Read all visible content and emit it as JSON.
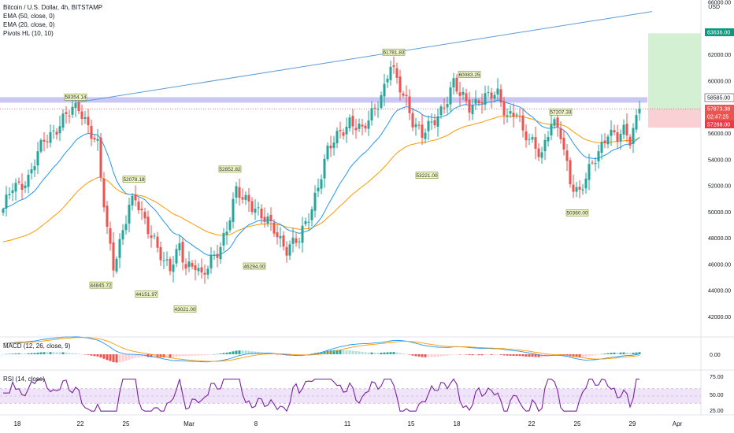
{
  "legend": {
    "symbol": "Bitcoin / U.S. Dollar, 4h, BITSTAMP",
    "ema50": "EMA (50, close, 0)",
    "ema20": "EMA (20, close, 0)",
    "pivots": "Pivots HL (10, 10)"
  },
  "currency": "USD",
  "macd_label": "MACD (12, 26, close, 9)",
  "rsi_label": "RSI (14, close)",
  "colors": {
    "up": "#26a69a",
    "down": "#ef5350",
    "ema20": "#2196f3",
    "ema50": "#ff9800",
    "trendline": "#5b9bd5",
    "band": "#b8b4f0",
    "rsi": "#7b1fa2",
    "pivot_bg": "#f0f5c8",
    "pivot_border": "#6b8e23"
  },
  "chart_data": {
    "type": "candlestick",
    "price_axis": {
      "ticks": [
        42000,
        44000,
        46000,
        48000,
        50000,
        52000,
        54000,
        56000,
        58000,
        60000,
        62000,
        64000,
        66000
      ],
      "tick_labels": [
        "42000.00",
        "44000.00",
        "46000.00",
        "48000.00",
        "50000.00",
        "52000.00",
        "54000.00",
        "56000.00",
        "",
        "60000.00",
        "62000.00",
        "",
        "66000.00"
      ],
      "range": [
        40500,
        66300
      ]
    },
    "time_axis": {
      "labels": [
        "18",
        "22",
        "25",
        "Mar",
        "8",
        "11",
        "15",
        "18",
        "22",
        "25",
        "29",
        "Apr"
      ]
    },
    "price_badges": [
      {
        "value": 63636.0,
        "label": "63636.00",
        "color": "#089981"
      },
      {
        "value": 58585.0,
        "label": "58585.00",
        "color": "#ffffff"
      },
      {
        "value": 57873.38,
        "label": "57873.38",
        "color": "#ef5350"
      },
      {
        "value": 57288.0,
        "label": "57288.00",
        "color": "#f23645"
      }
    ],
    "countdown": "02:47:25",
    "pivots": [
      {
        "label": "58354.14",
        "type": "high",
        "value": 58354.14
      },
      {
        "label": "44845.72",
        "type": "low",
        "value": 44845.72
      },
      {
        "label": "52078.18",
        "type": "high",
        "value": 52078.18
      },
      {
        "label": "44151.97",
        "type": "low",
        "value": 44151.97
      },
      {
        "label": "43021.00",
        "type": "low",
        "value": 43021.0
      },
      {
        "label": "52852.82",
        "type": "high",
        "value": 52852.82
      },
      {
        "label": "46294.00",
        "type": "low",
        "value": 46294.0
      },
      {
        "label": "61781.83",
        "type": "high",
        "value": 61781.83
      },
      {
        "label": "53221.00",
        "type": "low",
        "value": 53221.0
      },
      {
        "label": "60083.25",
        "type": "high",
        "value": 60083.25
      },
      {
        "label": "57207.33",
        "type": "high",
        "value": 57207.33
      },
      {
        "label": "50360.00",
        "type": "low",
        "value": 50360.0
      }
    ],
    "position": {
      "entry": 57873.38,
      "target": 63636.0,
      "stop": 57288.0
    },
    "macd_axis": {
      "ticks": [
        "0.00"
      ]
    },
    "rsi_axis": {
      "ticks": [
        "75.00",
        "50.00",
        "25.00"
      ],
      "band": [
        30,
        70
      ],
      "levels": [
        75,
        50,
        25
      ]
    }
  }
}
